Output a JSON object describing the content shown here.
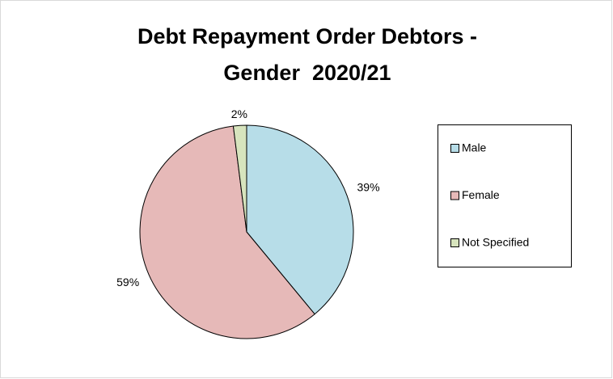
{
  "chart_data": {
    "type": "pie",
    "title": [
      "Debt Repayment Order Debtors -",
      "Gender  2020/21"
    ],
    "categories": [
      "Male",
      "Female",
      "Not Specified"
    ],
    "values": [
      39,
      59,
      2
    ],
    "value_labels": [
      "39%",
      "59%",
      "2%"
    ],
    "colors": [
      "#b7dde8",
      "#e6b9b8",
      "#d7e4bd"
    ],
    "legend": "right"
  }
}
